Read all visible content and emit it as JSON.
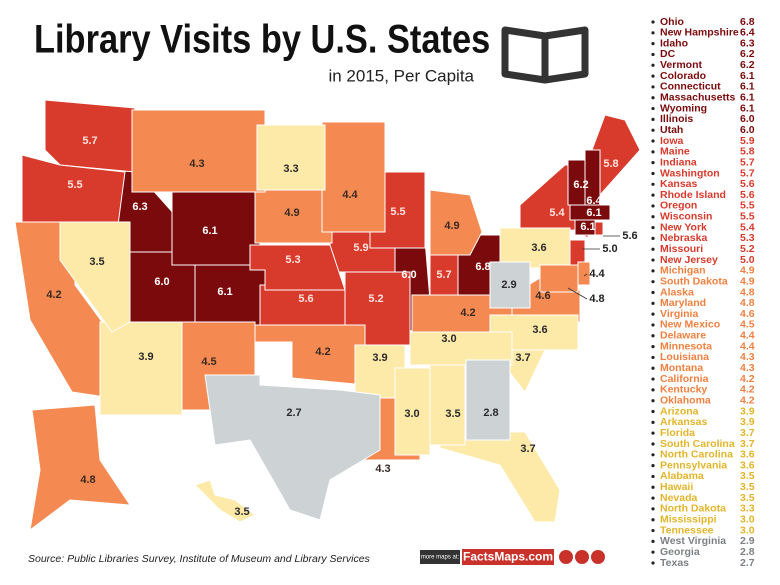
{
  "title": "Library Visits by U.S. States",
  "subtitle": "in 2015, Per Capita",
  "source": "Source: Public Libraries Survey, Institute of Museum and Library Services",
  "footer": {
    "prefix": "more maps at:",
    "brand": "FactsMaps.com"
  },
  "ranking": {
    "states": [
      "Ohio",
      "New Hampshire",
      "Idaho",
      "DC",
      "Vermont",
      "Colorado",
      "Connecticut",
      "Massachusetts",
      "Wyoming",
      "Illinois",
      "Utah",
      "Iowa",
      "Maine",
      "Indiana",
      "Washington",
      "Kansas",
      "Rhode Island",
      "Oregon",
      "Wisconsin",
      "New York",
      "Nebraska",
      "Missouri",
      "New Jersey",
      "Michigan",
      "South Dakota",
      "Alaska",
      "Maryland",
      "Virginia",
      "New Mexico",
      "Delaware",
      "Minnesota",
      "Louisiana",
      "Montana",
      "California",
      "Kentucky",
      "Oklahoma",
      "Arizona",
      "Arkansas",
      "Florida",
      "South Carolina",
      "North Carolina",
      "Pennsylvania",
      "Alabama",
      "Hawaii",
      "Nevada",
      "North Dakota",
      "Mississippi",
      "Tennessee",
      "West Virginia",
      "Georgia",
      "Texas"
    ],
    "values": [
      6.8,
      6.4,
      6.3,
      6.2,
      6.2,
      6.1,
      6.1,
      6.1,
      6.1,
      6,
      6,
      5.9,
      5.8,
      5.7,
      5.7,
      5.6,
      5.6,
      5.5,
      5.5,
      5.4,
      5.3,
      5.2,
      5,
      4.9,
      4.9,
      4.8,
      4.8,
      4.6,
      4.5,
      4.4,
      4.4,
      4.3,
      4.3,
      4.2,
      4.2,
      4.2,
      3.9,
      3.9,
      3.7,
      3.7,
      3.6,
      3.6,
      3.5,
      3.5,
      3.5,
      3.3,
      3,
      3,
      2.9,
      2.8,
      2.7
    ],
    "value_labels": [
      "6.8",
      "6.4",
      "6.3",
      "6.2",
      "6.2",
      "6.1",
      "6.1",
      "6.1",
      "6.1",
      "6.0",
      "6.0",
      "5.9",
      "5.8",
      "5.7",
      "5.7",
      "5.6",
      "5.6",
      "5.5",
      "5.5",
      "5.4",
      "5.3",
      "5.2",
      "5.0",
      "4.9",
      "4.9",
      "4.8",
      "4.8",
      "4.6",
      "4.5",
      "4.4",
      "4.4",
      "4.3",
      "4.3",
      "4.2",
      "4.2",
      "4.2",
      "3.9",
      "3.9",
      "3.7",
      "3.7",
      "3.6",
      "3.6",
      "3.5",
      "3.5",
      "3.5",
      "3.3",
      "3.0",
      "3.0",
      "2.9",
      "2.8",
      "2.7"
    ]
  },
  "color_scale": [
    {
      "from": 6,
      "color": "#7a0a0c",
      "text_color": "#7a0a0c",
      "label_color": "#ffffff"
    },
    {
      "from": 5,
      "color": "#d83a2c",
      "text_color": "#d83a2c",
      "label_color": "#fde3de"
    },
    {
      "from": 4,
      "color": "#f48a52",
      "text_color": "#f08040",
      "label_color": "#3a2a20"
    },
    {
      "from": 3,
      "color": "#fdeaa8",
      "text_color": "#e2b52a",
      "label_color": "#2a2a2a"
    },
    {
      "from": 0,
      "color": "#cdd2d5",
      "text_color": "#7d8184",
      "label_color": "#2a2a2a"
    }
  ]
}
